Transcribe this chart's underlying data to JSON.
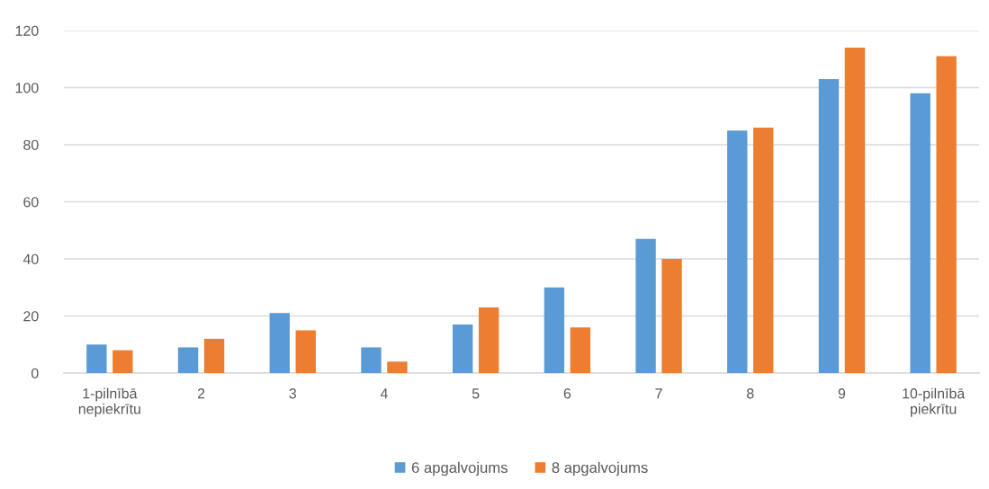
{
  "chart_data": {
    "type": "bar",
    "categories": [
      "1-pilnībā nepiekrītu",
      "2",
      "3",
      "4",
      "5",
      "6",
      "7",
      "8",
      "9",
      "10-pilnībā piekrītu"
    ],
    "series": [
      {
        "name": "6 apgalvojums",
        "color": "#5b9bd5",
        "values": [
          10,
          9,
          21,
          9,
          17,
          30,
          47,
          85,
          103,
          98
        ]
      },
      {
        "name": "8 apgalvojums",
        "color": "#ed7d31",
        "values": [
          8,
          12,
          15,
          4,
          23,
          16,
          40,
          86,
          114,
          111
        ]
      }
    ],
    "ylim": [
      0,
      120
    ],
    "yticks": [
      0,
      20,
      40,
      60,
      80,
      100,
      120
    ],
    "grid": "y",
    "legend": "bottom"
  }
}
